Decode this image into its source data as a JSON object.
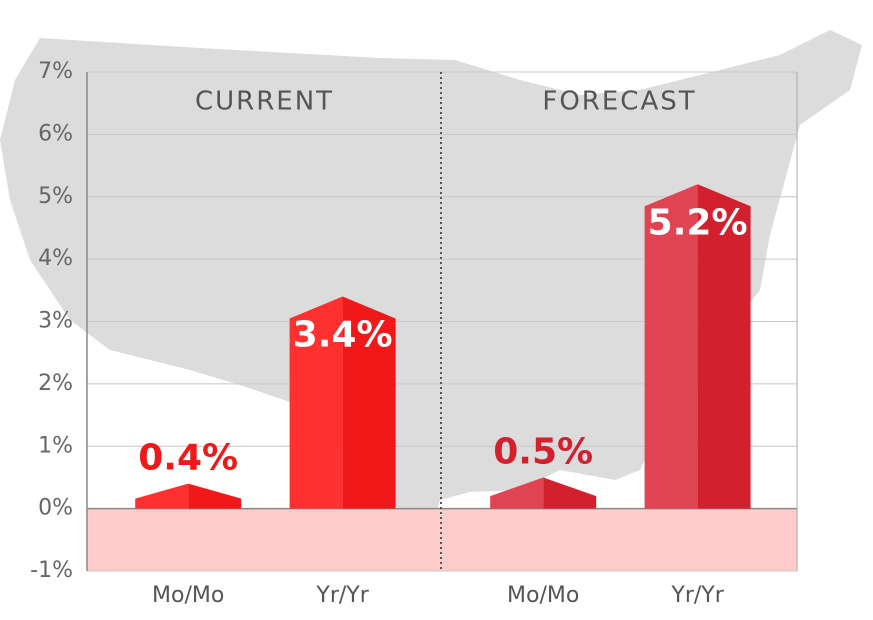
{
  "chart_data": {
    "type": "bar",
    "ylim": [
      -1,
      7
    ],
    "yticks": [
      {
        "value": -1,
        "label": "-1%"
      },
      {
        "value": 0,
        "label": "0%"
      },
      {
        "value": 1,
        "label": "1%"
      },
      {
        "value": 2,
        "label": "2%"
      },
      {
        "value": 3,
        "label": "3%"
      },
      {
        "value": 4,
        "label": "4%"
      },
      {
        "value": 5,
        "label": "5%"
      },
      {
        "value": 6,
        "label": "6%"
      },
      {
        "value": 7,
        "label": "7%"
      }
    ],
    "grid": true,
    "groups": [
      {
        "name": "CURRENT",
        "categories": [
          "Mo/Mo",
          "Yr/Yr"
        ],
        "values": [
          0.4,
          3.4
        ],
        "value_labels": [
          "0.4%",
          "3.4%"
        ],
        "color": "#ff3030",
        "label_color": "#f01818"
      },
      {
        "name": "FORECAST",
        "categories": [
          "Mo/Mo",
          "Yr/Yr"
        ],
        "values": [
          0.5,
          5.2
        ],
        "value_labels": [
          "0.5%",
          "5.2%"
        ],
        "color": "#e04452",
        "label_color": "#d2202e"
      }
    ]
  }
}
